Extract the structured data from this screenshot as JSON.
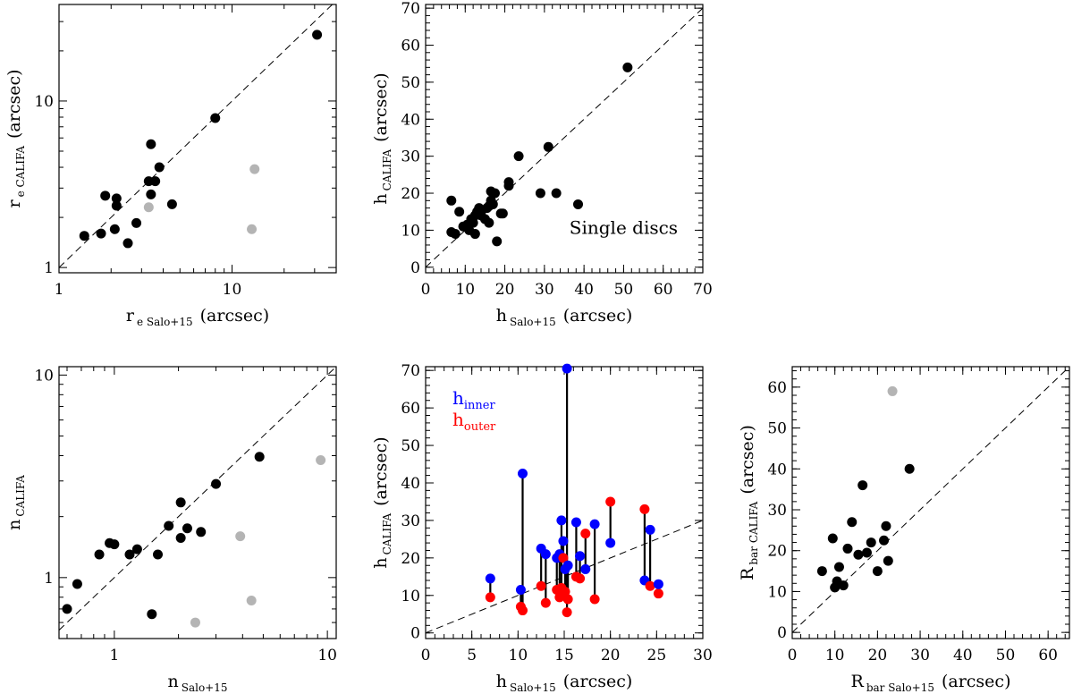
{
  "colors": {
    "black": "#000000",
    "grey": "#b4b4b4",
    "blue": "#0000ff",
    "red": "#ff0000"
  },
  "chart_data": [
    {
      "id": "re",
      "type": "scatter",
      "scale": "log",
      "xlim": [
        1,
        40
      ],
      "ylim": [
        0.93,
        38
      ],
      "xticks": [
        1,
        10
      ],
      "yticks": [
        1,
        10
      ],
      "xlabel": {
        "main": "r",
        "sub": "e Salo+15",
        "unit": "(arcsec)"
      },
      "ylabel": {
        "main": "r",
        "sub": "e CALIFA",
        "unit": "(arcsec)"
      },
      "series": [
        {
          "name": "black",
          "color": "#000000",
          "points": [
            [
              1.4,
              1.55
            ],
            [
              1.75,
              1.6
            ],
            [
              1.85,
              2.7
            ],
            [
              2.1,
              1.7
            ],
            [
              2.15,
              2.35
            ],
            [
              2.15,
              2.6
            ],
            [
              2.5,
              1.4
            ],
            [
              2.8,
              1.85
            ],
            [
              3.3,
              3.3
            ],
            [
              3.4,
              5.5
            ],
            [
              3.4,
              2.75
            ],
            [
              3.6,
              3.3
            ],
            [
              3.8,
              4.0
            ],
            [
              4.5,
              2.4
            ],
            [
              8.0,
              7.9
            ],
            [
              31.0,
              25.0
            ]
          ]
        },
        {
          "name": "grey",
          "color": "#b4b4b4",
          "points": [
            [
              3.3,
              2.3
            ],
            [
              13.0,
              1.7
            ],
            [
              13.5,
              3.9
            ]
          ]
        }
      ]
    },
    {
      "id": "h_single",
      "type": "scatter",
      "xlim": [
        0,
        70
      ],
      "ylim": [
        -1.5,
        71
      ],
      "xticks": [
        0,
        10,
        20,
        30,
        40,
        50,
        60,
        70
      ],
      "yticks": [
        0,
        10,
        20,
        30,
        40,
        50,
        60,
        70
      ],
      "xlabel": {
        "main": "h",
        "sub": "Salo+15",
        "unit": "(arcsec)"
      },
      "ylabel": {
        "main": "h",
        "sub": "CALIFA",
        "unit": "(arcsec)"
      },
      "annotation": "Single discs",
      "series": [
        {
          "name": "black",
          "color": "#000000",
          "points": [
            [
              6.5,
              18
            ],
            [
              6.5,
              9.5
            ],
            [
              7.5,
              9
            ],
            [
              8.5,
              15
            ],
            [
              9.5,
              11
            ],
            [
              10.5,
              11.5
            ],
            [
              11,
              10
            ],
            [
              11.5,
              13
            ],
            [
              12,
              12
            ],
            [
              12.5,
              9
            ],
            [
              12.5,
              14
            ],
            [
              13,
              15
            ],
            [
              13.5,
              16
            ],
            [
              14,
              15
            ],
            [
              14,
              14
            ],
            [
              15,
              13
            ],
            [
              15.5,
              16
            ],
            [
              16,
              12
            ],
            [
              16,
              16.5
            ],
            [
              16.5,
              18
            ],
            [
              16.5,
              20.5
            ],
            [
              17,
              17
            ],
            [
              17.5,
              20
            ],
            [
              18,
              7
            ],
            [
              19,
              14.5
            ],
            [
              19.5,
              14.5
            ],
            [
              21,
              23
            ],
            [
              21,
              22
            ],
            [
              23.5,
              30
            ],
            [
              29,
              20
            ],
            [
              31,
              32.5
            ],
            [
              33,
              20
            ],
            [
              38.5,
              17
            ],
            [
              51,
              54
            ]
          ]
        }
      ]
    },
    {
      "id": "n",
      "type": "scatter",
      "scale": "log",
      "xlim": [
        0.55,
        11
      ],
      "ylim": [
        0.5,
        11
      ],
      "xticks": [
        1,
        10
      ],
      "yticks": [
        1,
        10
      ],
      "xlabel": {
        "main": "n",
        "sub": "Salo+15",
        "unit": ""
      },
      "ylabel": {
        "main": "n",
        "sub": "CALIFA",
        "unit": ""
      },
      "series": [
        {
          "name": "black",
          "color": "#000000",
          "points": [
            [
              0.6,
              0.7
            ],
            [
              0.67,
              0.93
            ],
            [
              0.85,
              1.3
            ],
            [
              0.95,
              1.48
            ],
            [
              1.0,
              1.46
            ],
            [
              1.18,
              1.3
            ],
            [
              1.28,
              1.38
            ],
            [
              1.5,
              0.66
            ],
            [
              1.6,
              1.3
            ],
            [
              1.8,
              1.8
            ],
            [
              2.05,
              1.57
            ],
            [
              2.05,
              2.35
            ],
            [
              2.2,
              1.75
            ],
            [
              2.55,
              1.68
            ],
            [
              3.0,
              2.9
            ],
            [
              4.8,
              3.95
            ]
          ]
        },
        {
          "name": "grey",
          "color": "#b4b4b4",
          "points": [
            [
              2.4,
              0.6
            ],
            [
              3.9,
              1.6
            ],
            [
              4.4,
              0.77
            ],
            [
              9.3,
              3.8
            ]
          ]
        }
      ]
    },
    {
      "id": "h_double",
      "type": "scatter",
      "xlim": [
        0,
        30
      ],
      "ylim": [
        -1.5,
        71
      ],
      "xticks": [
        0,
        5,
        10,
        15,
        20,
        25,
        30
      ],
      "yticks": [
        0,
        10,
        20,
        30,
        40,
        50,
        60,
        70
      ],
      "xlabel": {
        "main": "h",
        "sub": "Salo+15",
        "unit": "(arcsec)"
      },
      "ylabel": {
        "main": "h",
        "sub": "CALIFA",
        "unit": "(arcsec)"
      },
      "legend": [
        {
          "main": "h",
          "sub": "inner",
          "color": "#0000ff"
        },
        {
          "main": "h",
          "sub": "outer",
          "color": "#ff0000"
        }
      ],
      "pairs": [
        {
          "x": 7.0,
          "inner": 14.5,
          "outer": 9.5
        },
        {
          "x": 10.3,
          "inner": 11.5,
          "outer": 7
        },
        {
          "x": 10.5,
          "inner": 42.5,
          "outer": 6
        },
        {
          "x": 12.5,
          "inner": 22.5,
          "outer": 12.5
        },
        {
          "x": 13.0,
          "inner": 21,
          "outer": 8
        },
        {
          "x": 14.2,
          "inner": 20,
          "outer": 11.5
        },
        {
          "x": 14.5,
          "inner": 21,
          "outer": 9.5
        },
        {
          "x": 14.7,
          "inner": 30,
          "outer": 12
        },
        {
          "x": 14.9,
          "inner": 24.5,
          "outer": 20
        },
        {
          "x": 15.1,
          "inner": 17,
          "outer": 11
        },
        {
          "x": 15.3,
          "inner": 70.5,
          "outer": 5.5
        },
        {
          "x": 15.4,
          "inner": 18,
          "outer": 9
        },
        {
          "x": 16.3,
          "inner": 29.5,
          "outer": 15
        },
        {
          "x": 16.7,
          "inner": 20.5,
          "outer": 14.5
        },
        {
          "x": 17.3,
          "inner": 17,
          "outer": 26.5
        },
        {
          "x": 18.3,
          "inner": 29,
          "outer": 9
        },
        {
          "x": 20.0,
          "inner": 24,
          "outer": 35
        },
        {
          "x": 23.7,
          "inner": 14,
          "outer": 33
        },
        {
          "x": 24.3,
          "inner": 27.5,
          "outer": 12.5
        },
        {
          "x": 25.2,
          "inner": 13,
          "outer": 10.5
        }
      ]
    },
    {
      "id": "rbar",
      "type": "scatter",
      "xlim": [
        0,
        65
      ],
      "ylim": [
        -1.5,
        65
      ],
      "xticks": [
        0,
        10,
        20,
        30,
        40,
        50,
        60
      ],
      "yticks": [
        0,
        10,
        20,
        30,
        40,
        50,
        60
      ],
      "xlabel": {
        "main": "R",
        "sub": "bar Salo+15",
        "unit": "(arcsec)"
      },
      "ylabel": {
        "main": "R",
        "sub": "bar CALIFA",
        "unit": "(arcsec)"
      },
      "series": [
        {
          "name": "black",
          "color": "#000000",
          "points": [
            [
              7,
              15
            ],
            [
              9.5,
              23
            ],
            [
              10,
              11
            ],
            [
              10.5,
              12.5
            ],
            [
              11,
              16
            ],
            [
              12,
              11.5
            ],
            [
              13,
              20.5
            ],
            [
              14,
              27
            ],
            [
              15.5,
              19
            ],
            [
              16.5,
              36
            ],
            [
              17.5,
              19.5
            ],
            [
              18.5,
              22
            ],
            [
              20,
              15
            ],
            [
              21.5,
              22.5
            ],
            [
              22,
              26
            ],
            [
              22.5,
              17.5
            ],
            [
              27.5,
              40
            ]
          ]
        },
        {
          "name": "grey",
          "color": "#b4b4b4",
          "points": [
            [
              23.5,
              59
            ]
          ]
        }
      ]
    }
  ]
}
